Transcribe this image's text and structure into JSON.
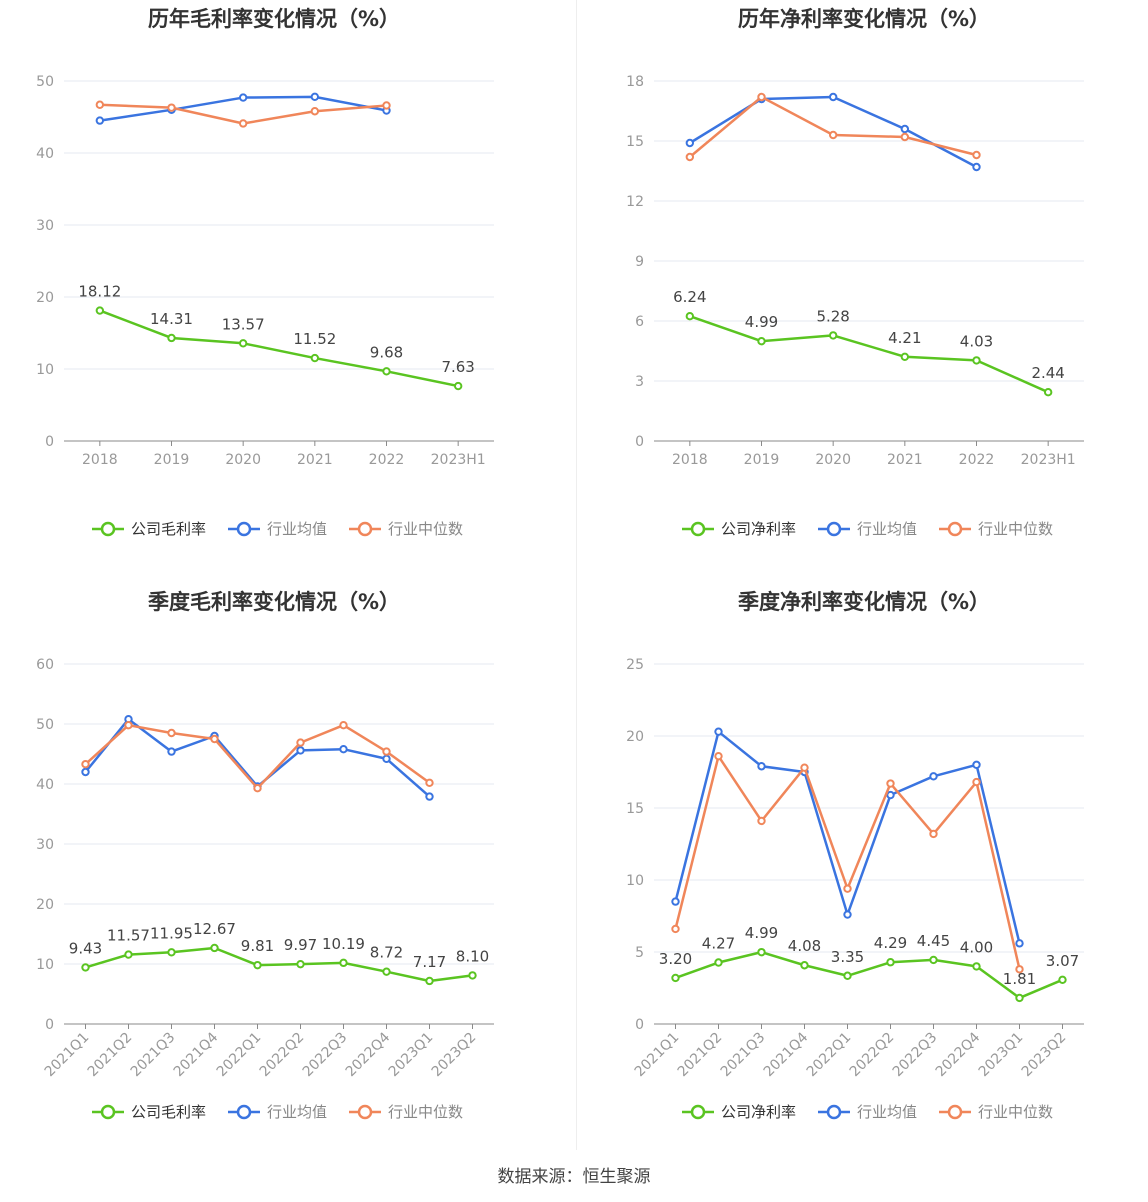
{
  "colors": {
    "company": "#5ac421",
    "avg": "#3a74e0",
    "median": "#f0865a",
    "grid": "#e6e9f0",
    "axis": "#8a8a8a",
    "text": "#999999",
    "title": "#333333",
    "label": "#444444"
  },
  "footer": {
    "source": "数据来源：恒生聚源"
  },
  "chart_data": [
    {
      "type": "line",
      "title": "历年毛利率变化情况（%）",
      "categories": [
        "2018",
        "2019",
        "2020",
        "2021",
        "2022",
        "2023H1"
      ],
      "yticks": [
        0,
        10,
        20,
        30,
        40,
        50
      ],
      "ylim": [
        0,
        50
      ],
      "rotate_x": false,
      "series": [
        {
          "key": "company",
          "name": "公司毛利率",
          "values": [
            18.12,
            14.31,
            13.57,
            11.52,
            9.68,
            7.63
          ],
          "labels": [
            "18.12",
            "14.31",
            "13.57",
            "11.52",
            "9.68",
            "7.63"
          ]
        },
        {
          "key": "avg",
          "name": "行业均值",
          "values": [
            44.5,
            46.0,
            47.7,
            47.8,
            45.9,
            null
          ]
        },
        {
          "key": "median",
          "name": "行业中位数",
          "values": [
            46.7,
            46.3,
            44.1,
            45.8,
            46.6,
            null
          ]
        }
      ]
    },
    {
      "type": "line",
      "title": "历年净利率变化情况（%）",
      "categories": [
        "2018",
        "2019",
        "2020",
        "2021",
        "2022",
        "2023H1"
      ],
      "yticks": [
        0,
        3,
        6,
        9,
        12,
        15,
        18
      ],
      "ylim": [
        0,
        18
      ],
      "rotate_x": false,
      "series": [
        {
          "key": "company",
          "name": "公司净利率",
          "values": [
            6.24,
            4.99,
            5.28,
            4.21,
            4.03,
            2.44
          ],
          "labels": [
            "6.24",
            "4.99",
            "5.28",
            "4.21",
            "4.03",
            "2.44"
          ]
        },
        {
          "key": "avg",
          "name": "行业均值",
          "values": [
            14.9,
            17.1,
            17.2,
            15.6,
            13.7,
            null
          ]
        },
        {
          "key": "median",
          "name": "行业中位数",
          "values": [
            14.2,
            17.2,
            15.3,
            15.2,
            14.3,
            null
          ]
        }
      ]
    },
    {
      "type": "line",
      "title": "季度毛利率变化情况（%）",
      "categories": [
        "2021Q1",
        "2021Q2",
        "2021Q3",
        "2021Q4",
        "2022Q1",
        "2022Q2",
        "2022Q3",
        "2022Q4",
        "2023Q1",
        "2023Q2"
      ],
      "yticks": [
        0,
        10,
        20,
        30,
        40,
        50,
        60
      ],
      "ylim": [
        0,
        60
      ],
      "rotate_x": true,
      "series": [
        {
          "key": "company",
          "name": "公司毛利率",
          "values": [
            9.43,
            11.57,
            11.95,
            12.67,
            9.81,
            9.97,
            10.19,
            8.72,
            7.17,
            8.1
          ],
          "labels": [
            "9.43",
            "11.57",
            "11.95",
            "12.67",
            "9.81",
            "9.97",
            "10.19",
            "8.72",
            "7.17",
            "8.10"
          ]
        },
        {
          "key": "avg",
          "name": "行业均值",
          "values": [
            42.0,
            50.8,
            45.4,
            48.0,
            39.6,
            45.6,
            45.8,
            44.2,
            37.9,
            null
          ]
        },
        {
          "key": "median",
          "name": "行业中位数",
          "values": [
            43.3,
            49.8,
            48.5,
            47.5,
            39.3,
            46.9,
            49.8,
            45.4,
            40.2,
            null
          ]
        }
      ]
    },
    {
      "type": "line",
      "title": "季度净利率变化情况（%）",
      "categories": [
        "2021Q1",
        "2021Q2",
        "2021Q3",
        "2021Q4",
        "2022Q1",
        "2022Q2",
        "2022Q3",
        "2022Q4",
        "2023Q1",
        "2023Q2"
      ],
      "yticks": [
        0,
        5,
        10,
        15,
        20,
        25
      ],
      "ylim": [
        0,
        25
      ],
      "rotate_x": true,
      "series": [
        {
          "key": "company",
          "name": "公司净利率",
          "values": [
            3.2,
            4.27,
            4.99,
            4.08,
            3.35,
            4.29,
            4.45,
            4.0,
            1.81,
            3.07
          ],
          "labels": [
            "3.20",
            "4.27",
            "4.99",
            "4.08",
            "3.35",
            "4.29",
            "4.45",
            "4.00",
            "1.81",
            "3.07"
          ]
        },
        {
          "key": "avg",
          "name": "行业均值",
          "values": [
            8.5,
            20.3,
            17.9,
            17.5,
            7.6,
            15.9,
            17.2,
            18.0,
            5.6,
            null
          ]
        },
        {
          "key": "median",
          "name": "行业中位数",
          "values": [
            6.6,
            18.6,
            14.1,
            17.8,
            9.4,
            16.7,
            13.2,
            16.8,
            3.8,
            null
          ]
        }
      ]
    }
  ]
}
